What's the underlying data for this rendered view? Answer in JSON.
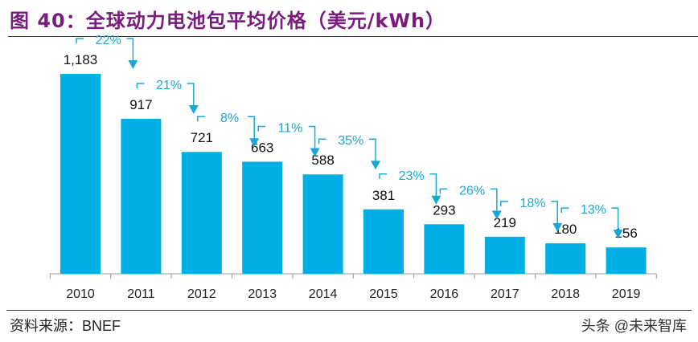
{
  "title": "图 40：全球动力电池包平均价格（美元/kWh）",
  "source": "资料来源：BNEF",
  "watermark": "头条 @未来智库",
  "chart_data": {
    "type": "bar",
    "title": "图 40：全球动力电池包平均价格（美元/kWh）",
    "categories": [
      "2010",
      "2011",
      "2012",
      "2013",
      "2014",
      "2015",
      "2016",
      "2017",
      "2018",
      "2019"
    ],
    "values": [
      1183,
      917,
      721,
      663,
      588,
      381,
      293,
      219,
      180,
      156
    ],
    "value_labels": [
      "1,183",
      "917",
      "721",
      "663",
      "588",
      "381",
      "293",
      "219",
      "180",
      "156"
    ],
    "annotations": [
      "22%",
      "21%",
      "8%",
      "11%",
      "35%",
      "23%",
      "26%",
      "18%",
      "13%"
    ],
    "ylim": [
      0,
      1183
    ],
    "grid": false,
    "colors": {
      "bar": "#00aee6",
      "annotation": "#1aa7d8",
      "title": "#7b1a7f"
    }
  }
}
